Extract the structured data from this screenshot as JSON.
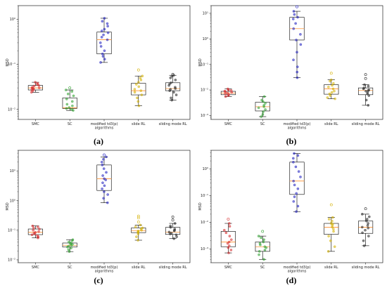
{
  "chart_data": [
    {
      "type": "box",
      "panel_label": "(a)",
      "ylabel": "MSD",
      "xlabel": "algorithms",
      "yscale": "log",
      "ylim": [
        0.006,
        2
      ],
      "y_ticks": [
        {
          "value": 0.01,
          "label": "10⁻²"
        },
        {
          "value": 0.1,
          "label": "10⁻¹"
        },
        {
          "value": 1,
          "label": "10⁰"
        }
      ],
      "categories": [
        "SMC",
        "SC",
        "modified td3(p)",
        "slide RL",
        "sliding mode RL"
      ],
      "boxes": [
        {
          "name": "SMC",
          "color": "#d62728",
          "whisker_low": 0.024,
          "q1": 0.027,
          "median": 0.03,
          "q3": 0.034,
          "whisker_high": 0.04,
          "points": [
            0.024,
            0.026,
            0.027,
            0.028,
            0.029,
            0.03,
            0.03,
            0.031,
            0.033,
            0.034,
            0.036,
            0.038,
            0.04
          ]
        },
        {
          "name": "SC",
          "color": "#2ca02c",
          "whisker_low": 0.0095,
          "q1": 0.0105,
          "median": 0.0108,
          "q3": 0.018,
          "whisker_high": 0.027,
          "points": [
            0.0095,
            0.01,
            0.0105,
            0.011,
            0.012,
            0.013,
            0.015,
            0.017,
            0.02,
            0.022,
            0.025,
            0.027,
            0.03
          ]
        },
        {
          "name": "modified td3(p)",
          "color": "#1f1fbf",
          "whisker_low": 0.11,
          "q1": 0.17,
          "median": 0.35,
          "q3": 0.52,
          "whisker_high": 1.05,
          "points": [
            0.11,
            0.13,
            0.15,
            0.17,
            0.2,
            0.25,
            0.3,
            0.35,
            0.4,
            0.45,
            0.5,
            0.55,
            0.6,
            0.7,
            0.8,
            0.9,
            1.05
          ]
        },
        {
          "name": "slide RL",
          "color": "#d4b000",
          "whisker_low": 0.012,
          "q1": 0.021,
          "median": 0.026,
          "q3": 0.038,
          "whisker_high": 0.055,
          "points": [
            0.012,
            0.015,
            0.018,
            0.021,
            0.024,
            0.026,
            0.028,
            0.032,
            0.036,
            0.04,
            0.045,
            0.05,
            0.055,
            0.075
          ]
        },
        {
          "name": "sliding mode RL",
          "color": "#222222",
          "whisker_low": 0.016,
          "q1": 0.026,
          "median": 0.029,
          "q3": 0.039,
          "whisker_high": 0.057,
          "points": [
            0.016,
            0.018,
            0.021,
            0.024,
            0.026,
            0.028,
            0.029,
            0.031,
            0.034,
            0.037,
            0.039,
            0.045,
            0.05,
            0.055,
            0.057,
            0.06
          ]
        }
      ]
    },
    {
      "type": "box",
      "panel_label": "(b)",
      "ylabel": "MSD",
      "xlabel": "algorithms",
      "yscale": "log",
      "ylim": [
        0.0007,
        20
      ],
      "y_ticks": [
        {
          "value": 0.001,
          "label": "10⁻³"
        },
        {
          "value": 0.01,
          "label": "10⁻²"
        },
        {
          "value": 0.1,
          "label": "10⁻¹"
        },
        {
          "value": 1,
          "label": "10⁰"
        },
        {
          "value": 10,
          "label": "10¹"
        }
      ],
      "categories": [
        "SMC",
        "SC",
        "modified td3(p)",
        "slide RL",
        "sliding mode RL"
      ],
      "boxes": [
        {
          "name": "SMC",
          "color": "#d62728",
          "whisker_low": 0.0055,
          "q1": 0.0065,
          "median": 0.0075,
          "q3": 0.0088,
          "whisker_high": 0.011,
          "points": [
            0.0055,
            0.006,
            0.0065,
            0.007,
            0.0075,
            0.008,
            0.0085,
            0.009,
            0.0095,
            0.01,
            0.011
          ]
        },
        {
          "name": "SC",
          "color": "#2ca02c",
          "whisker_low": 0.0009,
          "q1": 0.0015,
          "median": 0.0022,
          "q3": 0.0033,
          "whisker_high": 0.0055,
          "points": [
            0.0009,
            0.0011,
            0.0014,
            0.0017,
            0.002,
            0.0022,
            0.0025,
            0.003,
            0.0035,
            0.004,
            0.0055
          ]
        },
        {
          "name": "modified td3(p)",
          "color": "#1f1fbf",
          "whisker_low": 0.03,
          "q1": 0.9,
          "median": 2.5,
          "q3": 7.0,
          "whisker_high": 12,
          "points": [
            0.03,
            0.05,
            0.08,
            0.15,
            0.3,
            0.6,
            0.9,
            1.5,
            2.5,
            4,
            6,
            7,
            9,
            12,
            18
          ]
        },
        {
          "name": "slide RL",
          "color": "#d4b000",
          "whisker_low": 0.0045,
          "q1": 0.0068,
          "median": 0.011,
          "q3": 0.016,
          "whisker_high": 0.025,
          "points": [
            0.0045,
            0.005,
            0.006,
            0.007,
            0.008,
            0.009,
            0.011,
            0.013,
            0.015,
            0.018,
            0.022,
            0.025,
            0.045
          ]
        },
        {
          "name": "sliding mode RL",
          "color": "#222222",
          "whisker_low": 0.0025,
          "q1": 0.0065,
          "median": 0.0095,
          "q3": 0.012,
          "whisker_high": 0.016,
          "points": [
            0.0025,
            0.004,
            0.006,
            0.007,
            0.008,
            0.009,
            0.0095,
            0.01,
            0.011,
            0.012,
            0.014,
            0.016,
            0.028,
            0.04
          ]
        }
      ]
    },
    {
      "type": "box",
      "panel_label": "(c)",
      "ylabel": "MSD",
      "xlabel": "algorithms",
      "yscale": "log",
      "ylim": [
        0.008,
        50
      ],
      "y_ticks": [
        {
          "value": 0.01,
          "label": "10⁻²"
        },
        {
          "value": 0.1,
          "label": "10⁻¹"
        },
        {
          "value": 1,
          "label": "10⁰"
        },
        {
          "value": 10,
          "label": "10¹"
        }
      ],
      "categories": [
        "SMC",
        "SC",
        "modified td3(p)",
        "slide RL",
        "sliding mode RL"
      ],
      "boxes": [
        {
          "name": "SMC",
          "color": "#d62728",
          "whisker_low": 0.055,
          "q1": 0.071,
          "median": 0.085,
          "q3": 0.11,
          "whisker_high": 0.14,
          "points": [
            0.055,
            0.06,
            0.065,
            0.07,
            0.075,
            0.08,
            0.085,
            0.09,
            0.1,
            0.11,
            0.12,
            0.13,
            0.14
          ]
        },
        {
          "name": "SC",
          "color": "#2ca02c",
          "whisker_low": 0.019,
          "q1": 0.027,
          "median": 0.031,
          "q3": 0.037,
          "whisker_high": 0.048,
          "points": [
            0.019,
            0.022,
            0.025,
            0.027,
            0.029,
            0.031,
            0.033,
            0.035,
            0.037,
            0.04,
            0.044,
            0.048
          ]
        },
        {
          "name": "modified td3(p)",
          "color": "#1f1fbf",
          "whisker_low": 0.85,
          "q1": 2.2,
          "median": 5.5,
          "q3": 16,
          "whisker_high": 30,
          "points": [
            0.85,
            1.2,
            1.6,
            2.0,
            2.5,
            3.2,
            4.0,
            5.0,
            5.5,
            7.0,
            9.0,
            12,
            16,
            20,
            25,
            30,
            35
          ]
        },
        {
          "name": "slide RL",
          "color": "#d4b000",
          "whisker_low": 0.046,
          "q1": 0.083,
          "median": 0.095,
          "q3": 0.12,
          "whisker_high": 0.15,
          "points": [
            0.046,
            0.06,
            0.075,
            0.085,
            0.09,
            0.095,
            0.1,
            0.11,
            0.12,
            0.13,
            0.15,
            0.19,
            0.26,
            0.3
          ]
        },
        {
          "name": "sliding mode RL",
          "color": "#222222",
          "whisker_low": 0.052,
          "q1": 0.072,
          "median": 0.087,
          "q3": 0.125,
          "whisker_high": 0.17,
          "points": [
            0.052,
            0.06,
            0.07,
            0.075,
            0.08,
            0.087,
            0.095,
            0.1,
            0.11,
            0.125,
            0.14,
            0.17,
            0.22,
            0.28
          ]
        }
      ]
    },
    {
      "type": "box",
      "panel_label": "(d)",
      "ylabel": "MSD",
      "xlabel": "algorithms",
      "yscale": "log",
      "ylim": [
        0.0003,
        5
      ],
      "y_ticks": [
        {
          "value": 0.001,
          "label": "10⁻³"
        },
        {
          "value": 0.01,
          "label": "10⁻²"
        },
        {
          "value": 0.1,
          "label": "10⁻¹"
        },
        {
          "value": 1,
          "label": "10⁰"
        }
      ],
      "categories": [
        "SMC",
        "SC",
        "modified td3(p)",
        "slide RL",
        "sliding mode RL"
      ],
      "boxes": [
        {
          "name": "SMC",
          "color": "#d62728",
          "whisker_low": 0.0007,
          "q1": 0.0012,
          "median": 0.0018,
          "q3": 0.0045,
          "whisker_high": 0.009,
          "points": [
            0.0007,
            0.0009,
            0.0011,
            0.0013,
            0.0016,
            0.0018,
            0.0022,
            0.003,
            0.004,
            0.005,
            0.007,
            0.009,
            0.013
          ]
        },
        {
          "name": "SC",
          "color": "#2ca02c",
          "whisker_low": 0.0004,
          "q1": 0.0008,
          "median": 0.0012,
          "q3": 0.0018,
          "whisker_high": 0.003,
          "points": [
            0.0004,
            0.0006,
            0.0008,
            0.0009,
            0.0011,
            0.0012,
            0.0014,
            0.0016,
            0.0018,
            0.0022,
            0.0026,
            0.003,
            0.0045
          ]
        },
        {
          "name": "modified td3(p)",
          "color": "#1f1fbf",
          "whisker_low": 0.025,
          "q1": 0.11,
          "median": 0.35,
          "q3": 1.8,
          "whisker_high": 3.8,
          "points": [
            0.025,
            0.04,
            0.06,
            0.09,
            0.12,
            0.18,
            0.25,
            0.35,
            0.5,
            0.8,
            1.2,
            1.8,
            2.5,
            3.2,
            3.8
          ]
        },
        {
          "name": "slide RL",
          "color": "#d4b000",
          "whisker_low": 0.0008,
          "q1": 0.0035,
          "median": 0.0065,
          "q3": 0.009,
          "whisker_high": 0.015,
          "points": [
            0.0008,
            0.0012,
            0.002,
            0.003,
            0.0045,
            0.0055,
            0.0065,
            0.0075,
            0.0085,
            0.009,
            0.011,
            0.013,
            0.015,
            0.045
          ]
        },
        {
          "name": "sliding mode RL",
          "color": "#222222",
          "whisker_low": 0.0013,
          "q1": 0.0038,
          "median": 0.0065,
          "q3": 0.011,
          "whisker_high": 0.02,
          "points": [
            0.0013,
            0.002,
            0.003,
            0.004,
            0.005,
            0.006,
            0.0065,
            0.0075,
            0.009,
            0.011,
            0.013,
            0.016,
            0.02,
            0.032
          ]
        }
      ]
    }
  ]
}
